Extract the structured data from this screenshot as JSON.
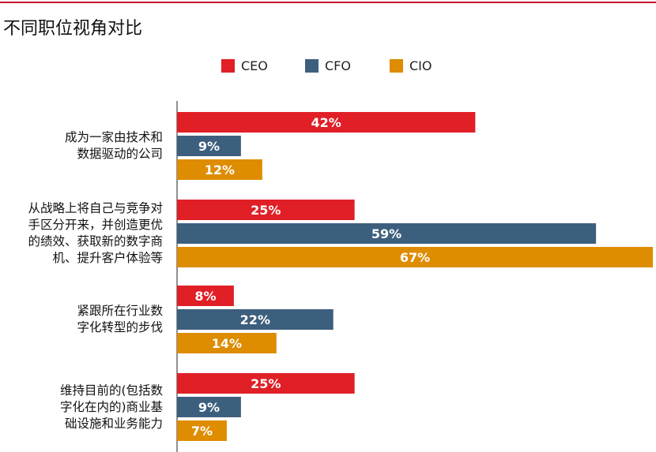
{
  "title": "不同职位视角对比",
  "colors": {
    "accent_rule": "#c8102e"
  },
  "chart_data": {
    "type": "bar",
    "orientation": "horizontal",
    "title": "不同职位视角对比",
    "legend_position": "top-center",
    "grid": false,
    "xlim": [
      0,
      67
    ],
    "value_suffix": "%",
    "categories": [
      [
        "成为一家由技术和",
        "数据驱动的公司"
      ],
      [
        "从战略上将自己与竞争对",
        "手区分开来，并创造更优",
        "的绩效、获取新的数字商",
        "机、提升客户体验等"
      ],
      [
        "紧跟所在行业数",
        "字化转型的步伐"
      ],
      [
        "维持目前的(包括数",
        "字化在内的)商业基",
        "础设施和业务能力"
      ]
    ],
    "series": [
      {
        "name": "CEO",
        "color": "#e01f26",
        "values": [
          42,
          25,
          8,
          25
        ]
      },
      {
        "name": "CFO",
        "color": "#3d5f7e",
        "values": [
          9,
          59,
          22,
          9
        ]
      },
      {
        "name": "CIO",
        "color": "#de8c00",
        "values": [
          12,
          67,
          14,
          7
        ]
      }
    ]
  }
}
